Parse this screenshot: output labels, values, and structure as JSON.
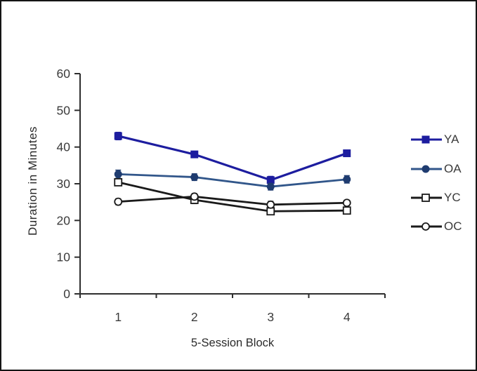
{
  "chart_data": {
    "type": "line",
    "title": "",
    "xlabel": "5-Session Block",
    "ylabel": "Duration in Minutes",
    "categories": [
      "1",
      "2",
      "3",
      "4"
    ],
    "ylim": [
      0,
      60
    ],
    "yticks": [
      0,
      10,
      20,
      30,
      40,
      50,
      60
    ],
    "grid": false,
    "legend_position": "right",
    "error_bars": true,
    "series": [
      {
        "name": "YA",
        "marker": "square-filled",
        "color": "#1d1d9f",
        "marker_color": "#1d1d9f",
        "values": [
          43.0,
          38.0,
          31.0,
          38.3
        ],
        "errors": [
          1.0,
          0.8,
          1.0,
          0.8
        ]
      },
      {
        "name": "OA",
        "marker": "circle-filled",
        "color": "#31568a",
        "marker_color": "#1f3c70",
        "values": [
          32.6,
          31.8,
          29.2,
          31.2
        ],
        "errors": [
          1.1,
          0.9,
          0.9,
          1.0
        ]
      },
      {
        "name": "YC",
        "marker": "square-open",
        "color": "#1a1a1a",
        "marker_color": "#1a1a1a",
        "values": [
          30.4,
          25.6,
          22.5,
          22.7
        ],
        "errors": [
          0.9,
          1.0,
          0.9,
          0.8
        ]
      },
      {
        "name": "OC",
        "marker": "circle-open",
        "color": "#1a1a1a",
        "marker_color": "#1a1a1a",
        "values": [
          25.1,
          26.5,
          24.3,
          24.8
        ],
        "errors": [
          0.8,
          0.8,
          0.9,
          0.7
        ]
      }
    ]
  }
}
